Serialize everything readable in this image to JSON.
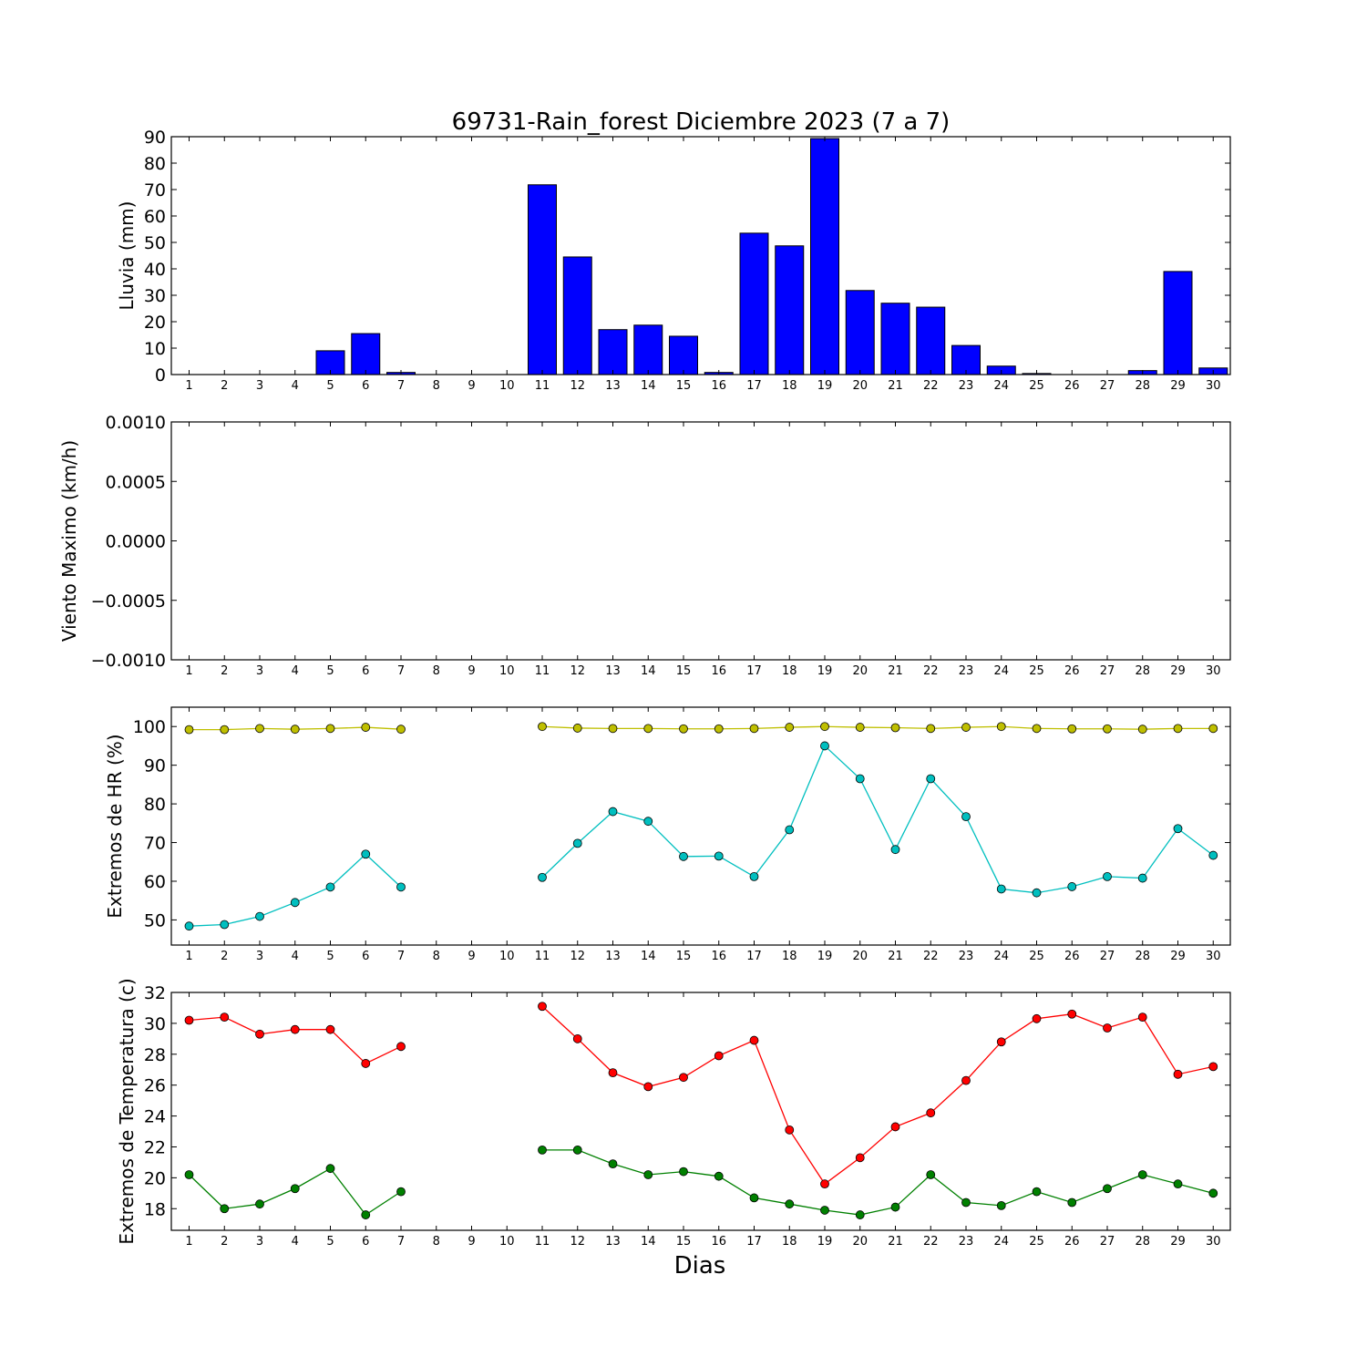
{
  "title": "69731-Rain_forest Diciembre 2023  (7 a 7)",
  "xlabel": "Dias",
  "days": [
    "1",
    "2",
    "3",
    "4",
    "5",
    "6",
    "7",
    "8",
    "9",
    "10",
    "11",
    "12",
    "13",
    "14",
    "15",
    "16",
    "17",
    "18",
    "19",
    "20",
    "21",
    "22",
    "23",
    "24",
    "25",
    "26",
    "27",
    "28",
    "29",
    "30"
  ],
  "colors": {
    "rain": "#0000ff",
    "hr_max": "#bfbf00",
    "hr_min": "#00bfbf",
    "temp_max": "#ff0000",
    "temp_min": "#008000"
  },
  "chart_data": [
    {
      "type": "bar",
      "ylabel": "Lluvia (mm)",
      "ylim": [
        0,
        90
      ],
      "yticks": [
        "0",
        "10",
        "20",
        "30",
        "40",
        "50",
        "60",
        "70",
        "80",
        "90"
      ],
      "categories": [
        "1",
        "2",
        "3",
        "4",
        "5",
        "6",
        "7",
        "8",
        "9",
        "10",
        "11",
        "12",
        "13",
        "14",
        "15",
        "16",
        "17",
        "18",
        "19",
        "20",
        "21",
        "22",
        "23",
        "24",
        "25",
        "26",
        "27",
        "28",
        "29",
        "30"
      ],
      "values": [
        0,
        0,
        0,
        0,
        9.0,
        15.5,
        0.8,
        0,
        0,
        0,
        71.8,
        44.5,
        17.0,
        18.7,
        14.5,
        0.8,
        53.5,
        48.7,
        89.3,
        31.8,
        27.0,
        25.5,
        11.0,
        3.2,
        0.4,
        0,
        0,
        1.5,
        39.0,
        2.5
      ]
    },
    {
      "type": "line",
      "ylabel": "Viento Maximo (km/h)",
      "ylim": [
        -0.001,
        0.001
      ],
      "yticks": [
        "−0.0010",
        "−0.0005",
        "0.0000",
        "0.0005",
        "0.0010"
      ],
      "categories": [
        "1",
        "2",
        "3",
        "4",
        "5",
        "6",
        "7",
        "8",
        "9",
        "10",
        "11",
        "12",
        "13",
        "14",
        "15",
        "16",
        "17",
        "18",
        "19",
        "20",
        "21",
        "22",
        "23",
        "24",
        "25",
        "26",
        "27",
        "28",
        "29",
        "30"
      ],
      "series": []
    },
    {
      "type": "line",
      "ylabel": "Extremos de HR (%)",
      "ylim": [
        43.5,
        105
      ],
      "yticks": [
        "50",
        "60",
        "70",
        "80",
        "90",
        "100"
      ],
      "categories": [
        "1",
        "2",
        "3",
        "4",
        "5",
        "6",
        "7",
        "8",
        "9",
        "10",
        "11",
        "12",
        "13",
        "14",
        "15",
        "16",
        "17",
        "18",
        "19",
        "20",
        "21",
        "22",
        "23",
        "24",
        "25",
        "26",
        "27",
        "28",
        "29",
        "30"
      ],
      "series": [
        {
          "values": [
            99.2,
            99.2,
            99.5,
            99.3,
            99.5,
            99.8,
            99.3,
            null,
            null,
            null,
            100,
            99.6,
            99.5,
            99.5,
            99.4,
            99.4,
            99.5,
            99.8,
            100,
            99.8,
            99.7,
            99.5,
            99.8,
            100,
            99.5,
            99.4,
            99.4,
            99.3,
            99.5,
            99.5
          ]
        },
        {
          "values": [
            48.4,
            48.8,
            50.9,
            54.5,
            58.5,
            67.0,
            58.5,
            null,
            null,
            null,
            61.0,
            69.8,
            78.0,
            75.5,
            66.4,
            66.5,
            61.2,
            73.3,
            95.0,
            86.5,
            68.2,
            86.5,
            76.7,
            58.0,
            57.0,
            58.6,
            61.2,
            60.8,
            73.6,
            66.7
          ]
        }
      ]
    },
    {
      "type": "line",
      "ylabel": "Extremos de Temperatura (c)",
      "ylim": [
        16.6,
        32
      ],
      "yticks": [
        "18",
        "20",
        "22",
        "24",
        "26",
        "28",
        "30",
        "32"
      ],
      "categories": [
        "1",
        "2",
        "3",
        "4",
        "5",
        "6",
        "7",
        "8",
        "9",
        "10",
        "11",
        "12",
        "13",
        "14",
        "15",
        "16",
        "17",
        "18",
        "19",
        "20",
        "21",
        "22",
        "23",
        "24",
        "25",
        "26",
        "27",
        "28",
        "29",
        "30"
      ],
      "series": [
        {
          "values": [
            30.2,
            30.4,
            29.3,
            29.6,
            29.6,
            27.4,
            28.5,
            null,
            null,
            null,
            31.1,
            29.0,
            26.8,
            25.9,
            26.5,
            27.9,
            28.9,
            23.1,
            19.6,
            21.3,
            23.3,
            24.2,
            26.3,
            28.8,
            30.3,
            30.6,
            29.7,
            30.4,
            26.7,
            27.2
          ]
        },
        {
          "values": [
            20.2,
            18.0,
            18.3,
            19.3,
            20.6,
            17.6,
            19.1,
            null,
            null,
            null,
            21.8,
            21.8,
            20.9,
            20.2,
            20.4,
            20.1,
            18.7,
            18.3,
            17.9,
            17.6,
            18.1,
            20.2,
            18.4,
            18.2,
            19.1,
            18.4,
            19.3,
            20.2,
            19.6,
            19.0
          ]
        }
      ]
    }
  ]
}
